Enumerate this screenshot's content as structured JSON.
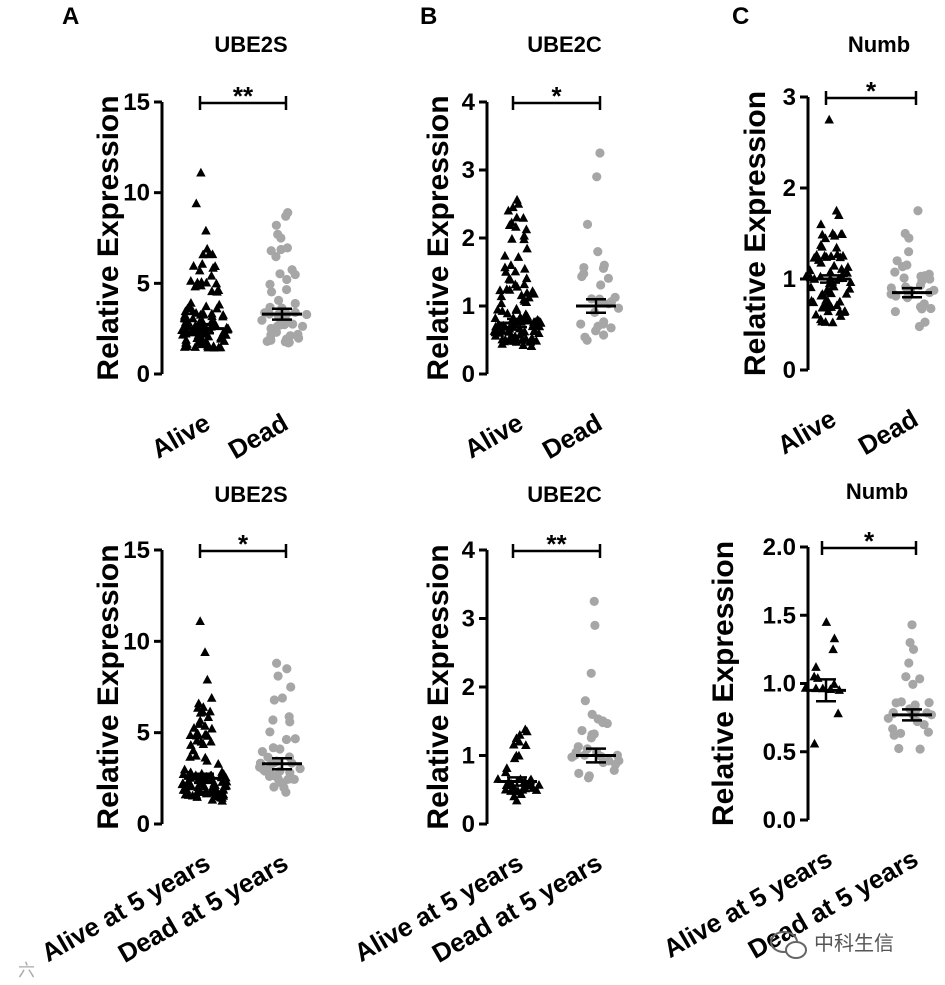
{
  "figure": {
    "watermark": "中科生信",
    "watermark_faint": "六"
  },
  "colors": {
    "alive": "#000000",
    "dead": "#a6a6a6",
    "axis": "#000000"
  },
  "chart_data": [
    {
      "id": "A1",
      "panel_letter": "A",
      "type": "scatter",
      "title": "UBE2S",
      "ylabel": "Relative Expression",
      "categories": [
        "Alive",
        "Dead"
      ],
      "ylim": [
        0,
        15
      ],
      "yticks": [
        "0",
        "5",
        "10",
        "15"
      ],
      "significance": "**",
      "series": [
        {
          "name": "Alive",
          "marker": "triangle",
          "n": 110,
          "mean": 2.5,
          "sem": 0.25,
          "max": 11.1,
          "highlights": [
            11.1,
            9.4,
            7.9,
            6.9,
            6.6
          ]
        },
        {
          "name": "Dead",
          "marker": "circle",
          "n": 50,
          "mean": 3.3,
          "sem": 0.3,
          "max": 8.9,
          "highlights": [
            8.9,
            8.7,
            8.2,
            7.7,
            7.5
          ]
        }
      ]
    },
    {
      "id": "B1",
      "panel_letter": "B",
      "type": "scatter",
      "title": "UBE2C",
      "ylabel": "Relative Expression",
      "categories": [
        "Alive",
        "Dead"
      ],
      "ylim": [
        0,
        4
      ],
      "yticks": [
        "0",
        "1",
        "2",
        "3",
        "4"
      ],
      "significance": "*",
      "series": [
        {
          "name": "Alive",
          "marker": "triangle",
          "n": 110,
          "mean": 0.75,
          "sem": 0.06,
          "max": 2.56,
          "highlights": [
            2.56,
            2.5,
            2.45,
            2.4,
            2.3
          ]
        },
        {
          "name": "Dead",
          "marker": "circle",
          "n": 28,
          "mean": 1.0,
          "sem": 0.1,
          "max": 3.25,
          "highlights": [
            3.25,
            2.9,
            2.2,
            1.8,
            1.6
          ]
        }
      ]
    },
    {
      "id": "C1",
      "panel_letter": "C",
      "type": "scatter",
      "title": "Numb",
      "ylabel": "Relative Expression",
      "categories": [
        "Alive",
        "Dead"
      ],
      "ylim": [
        0,
        3
      ],
      "yticks": [
        "0",
        "1",
        "2",
        "3"
      ],
      "significance": "*",
      "series": [
        {
          "name": "Alive",
          "marker": "triangle",
          "n": 75,
          "mean": 1.0,
          "sem": 0.04,
          "max": 2.75,
          "highlights": [
            2.75,
            1.75,
            1.7,
            1.6,
            1.5
          ]
        },
        {
          "name": "Dead",
          "marker": "circle",
          "n": 32,
          "mean": 0.85,
          "sem": 0.05,
          "max": 1.75,
          "highlights": [
            1.75,
            1.5,
            1.45,
            1.3,
            1.2
          ]
        }
      ]
    },
    {
      "id": "A2",
      "panel_letter": "",
      "type": "scatter",
      "title": "UBE2S",
      "ylabel": "Relative Expression",
      "categories": [
        "Alive at 5 years",
        "Dead at 5 years"
      ],
      "ylim": [
        0,
        15
      ],
      "yticks": [
        "0",
        "5",
        "10",
        "15"
      ],
      "significance": "*",
      "series": [
        {
          "name": "Alive at 5 years",
          "marker": "triangle",
          "n": 110,
          "mean": 2.5,
          "sem": 0.25,
          "max": 11.1,
          "highlights": [
            11.1,
            9.4,
            7.9,
            6.9,
            6.6
          ]
        },
        {
          "name": "Dead at 5 years",
          "marker": "circle",
          "n": 40,
          "mean": 3.3,
          "sem": 0.3,
          "max": 8.8,
          "highlights": [
            8.8,
            8.5,
            8.1,
            7.5,
            6.9
          ]
        }
      ]
    },
    {
      "id": "B2",
      "panel_letter": "",
      "type": "scatter",
      "title": "UBE2C",
      "ylabel": "Relative Expression",
      "categories": [
        "Alive at 5 years",
        "Dead at 5 years"
      ],
      "ylim": [
        0,
        4
      ],
      "yticks": [
        "0",
        "1",
        "2",
        "3",
        "4"
      ],
      "significance": "**",
      "series": [
        {
          "name": "Alive at 5 years",
          "marker": "triangle",
          "n": 35,
          "mean": 0.62,
          "sem": 0.06,
          "max": 1.38,
          "highlights": [
            1.38,
            1.35,
            1.3,
            1.25,
            1.2
          ]
        },
        {
          "name": "Dead at 5 years",
          "marker": "circle",
          "n": 30,
          "mean": 1.0,
          "sem": 0.1,
          "max": 3.25,
          "highlights": [
            3.25,
            2.9,
            2.2,
            1.8,
            1.6
          ]
        }
      ]
    },
    {
      "id": "C2",
      "panel_letter": "",
      "type": "scatter",
      "title": "Numb",
      "ylabel": "Relative Expression",
      "categories": [
        "Alive at 5 years",
        "Dead at 5 years"
      ],
      "ylim": [
        0,
        2
      ],
      "yticks": [
        "0.0",
        "0.5",
        "1.0",
        "1.5",
        "2.0"
      ],
      "significance": "*",
      "series": [
        {
          "name": "Alive at 5 years",
          "marker": "triangle",
          "n": 14,
          "mean": 0.95,
          "sem": 0.08,
          "max": 1.45,
          "highlights": [
            1.45,
            1.33,
            1.25,
            1.12,
            1.05
          ]
        },
        {
          "name": "Dead at 5 years",
          "marker": "circle",
          "n": 28,
          "mean": 0.77,
          "sem": 0.04,
          "max": 1.43,
          "highlights": [
            1.43,
            1.3,
            1.25,
            1.15,
            1.05
          ]
        }
      ]
    }
  ]
}
